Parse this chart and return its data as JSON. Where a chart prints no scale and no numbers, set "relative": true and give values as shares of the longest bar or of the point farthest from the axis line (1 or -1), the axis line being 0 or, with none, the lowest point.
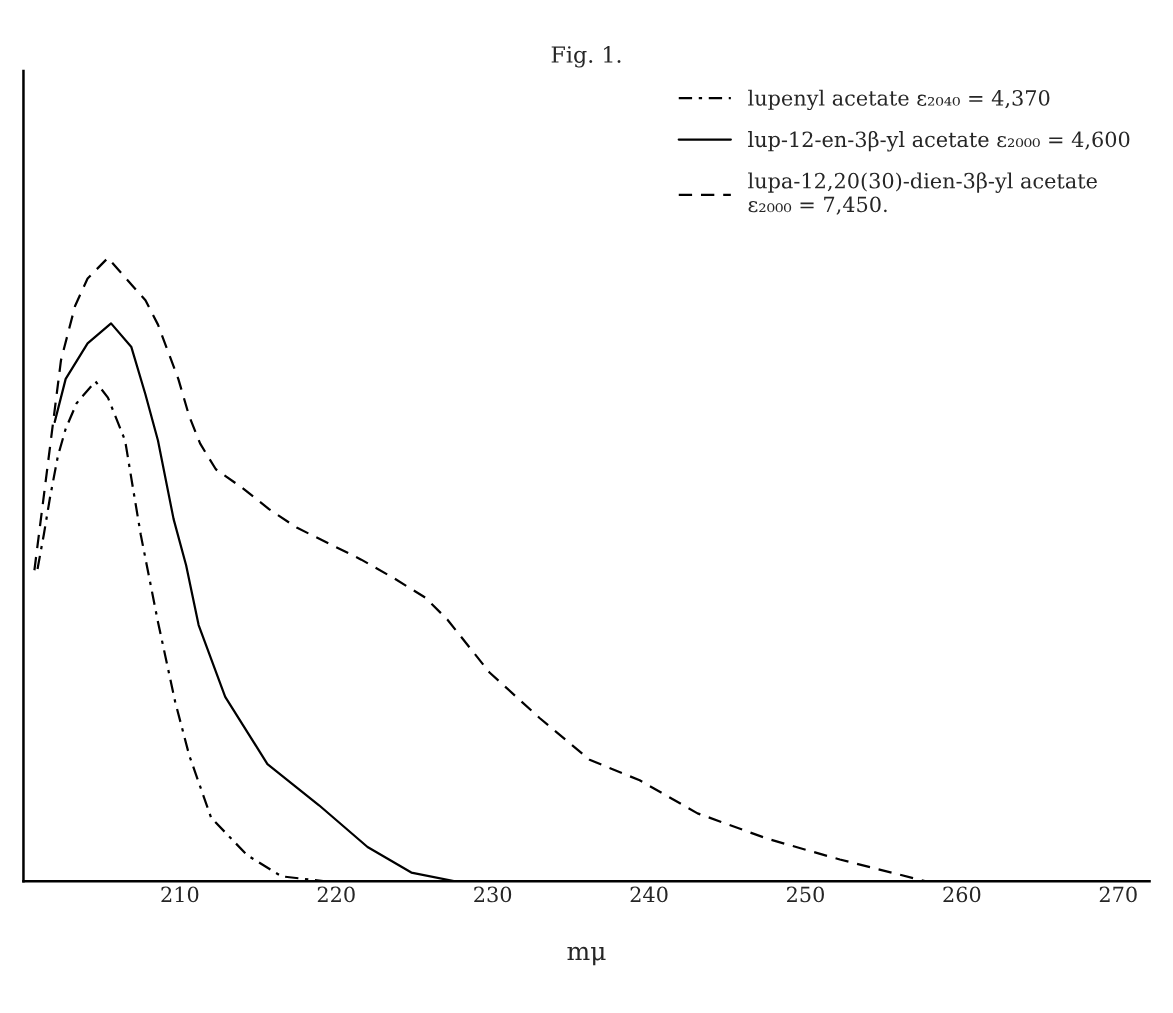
{
  "chart_data": {
    "type": "line",
    "title": "Fig. 1.",
    "xlabel": "mμ",
    "relative": true,
    "legend": "top right",
    "grid": false,
    "xlim": [
      200,
      272
    ],
    "xticks": [
      210,
      220,
      230,
      240,
      250,
      260,
      270
    ],
    "series": [
      {
        "name": "lupenyl acetate ε₂₀₄₀ = 4,370",
        "color": "#000000",
        "line_style": "dashdot",
        "x": [
          200.9,
          201.3,
          201.7,
          202.2,
          202.7,
          203.4,
          204.6,
          205.4,
          206.5,
          207.0,
          207.5,
          208.6,
          209.7,
          210.6,
          212.0,
          214.3,
          216.5,
          219.3
        ],
        "values": [
          0.501,
          0.556,
          0.616,
          0.682,
          0.726,
          0.767,
          0.802,
          0.776,
          0.707,
          0.631,
          0.556,
          0.416,
          0.288,
          0.202,
          0.102,
          0.042,
          0.008,
          0.0
        ]
      },
      {
        "name": "lup-12-en-3β-yl acetate ε₂₀₀₀ = 4,600",
        "color": "#000000",
        "line_style": "solid",
        "x": [
          202.0,
          202.7,
          204.1,
          205.6,
          206.9,
          207.8,
          208.6,
          209.6,
          210.4,
          211.2,
          212.9,
          215.6,
          218.9,
          222.0,
          224.8,
          227.6
        ],
        "values": [
          0.737,
          0.806,
          0.863,
          0.895,
          0.857,
          0.781,
          0.707,
          0.581,
          0.507,
          0.411,
          0.296,
          0.188,
          0.122,
          0.055,
          0.014,
          0.0
        ]
      },
      {
        "name": "lupa-12,20(30)-dien-3β-yl acetate\nε₂₀₀₀ = 7,450.",
        "color": "#000000",
        "line_style": "dashed",
        "x": [
          200.7,
          202.4,
          203.3,
          204.1,
          205.4,
          207.8,
          208.6,
          209.9,
          210.6,
          211.3,
          212.3,
          214.0,
          215.7,
          217.5,
          219.6,
          221.6,
          223.7,
          225.7,
          227.1,
          229.8,
          233.0,
          236.2,
          239.4,
          243.1,
          247.6,
          252.2,
          257.7
        ],
        "values": [
          0.499,
          0.836,
          0.923,
          0.967,
          1.0,
          0.932,
          0.893,
          0.806,
          0.746,
          0.702,
          0.661,
          0.631,
          0.597,
          0.567,
          0.541,
          0.516,
          0.486,
          0.455,
          0.42,
          0.335,
          0.262,
          0.195,
          0.162,
          0.109,
          0.068,
          0.035,
          0.0
        ]
      }
    ]
  }
}
